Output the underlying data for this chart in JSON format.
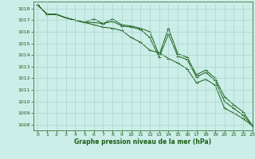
{
  "title": "Graphe pression niveau de la mer (hPa)",
  "bg_color": "#cceee8",
  "grid_color": "#aad4cc",
  "line_color": "#1a5e1a",
  "marker": "+",
  "xlim": [
    -0.5,
    23
  ],
  "ylim": [
    1007.5,
    1018.6
  ],
  "yticks": [
    1008,
    1009,
    1010,
    1011,
    1012,
    1013,
    1014,
    1015,
    1016,
    1017,
    1018
  ],
  "xticks": [
    0,
    1,
    2,
    3,
    4,
    5,
    6,
    7,
    8,
    9,
    10,
    11,
    12,
    13,
    14,
    15,
    16,
    17,
    18,
    19,
    20,
    21,
    22,
    23
  ],
  "series": [
    [
      1018.3,
      1017.5,
      1017.5,
      1017.2,
      1017.0,
      1016.8,
      1016.6,
      1016.4,
      1016.3,
      1016.1,
      1015.5,
      1015.1,
      1014.4,
      1014.2,
      1013.7,
      1013.3,
      1012.8,
      1011.6,
      1011.9,
      1011.4,
      1009.4,
      1009.0,
      1008.5,
      1007.9
    ],
    [
      1018.3,
      1017.5,
      1017.5,
      1017.2,
      1017.0,
      1016.8,
      1016.8,
      1016.7,
      1016.9,
      1016.5,
      1016.4,
      1016.2,
      1015.5,
      1013.8,
      1015.8,
      1013.9,
      1013.6,
      1012.1,
      1012.5,
      1011.8,
      1010.0,
      1009.4,
      1008.8,
      1007.9
    ],
    [
      1018.3,
      1017.5,
      1017.5,
      1017.2,
      1017.0,
      1016.8,
      1017.1,
      1016.7,
      1017.1,
      1016.6,
      1016.5,
      1016.3,
      1016.0,
      1014.0,
      1016.3,
      1014.1,
      1013.8,
      1012.3,
      1012.7,
      1012.0,
      1010.4,
      1009.7,
      1009.1,
      1007.9
    ]
  ]
}
